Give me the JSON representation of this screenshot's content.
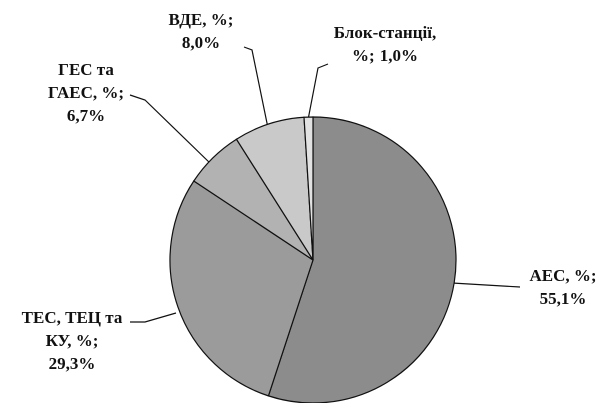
{
  "chart_data": {
    "type": "pie",
    "categories": [
      "АЕС, %;",
      "ТЕС, ТЕЦ та КУ, %;",
      "ГЕС та ГАЕС, %;",
      "ВДЕ, %;",
      "Блок-станції, %;"
    ],
    "values": [
      55.1,
      29.3,
      6.7,
      8.0,
      1.0
    ],
    "value_labels": [
      "55,1%",
      "29,3%",
      "6,7%",
      "8,0%",
      "1,0%"
    ],
    "colors": [
      "#8c8c8c",
      "#9b9b9b",
      "#b2b2b2",
      "#c9c9c9",
      "#e2e2e2"
    ]
  }
}
